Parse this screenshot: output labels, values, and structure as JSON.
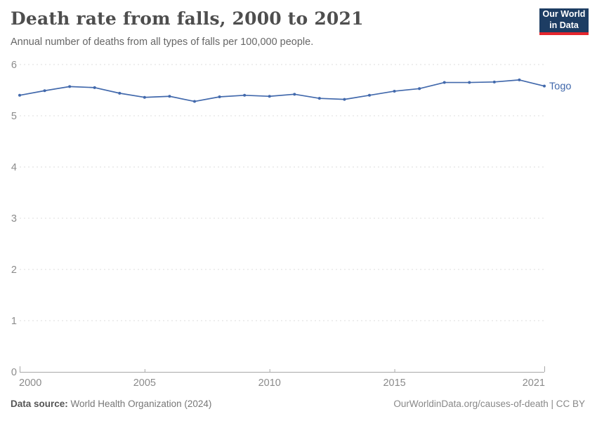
{
  "header": {
    "title": "Death rate from falls, 2000 to 2021",
    "subtitle": "Annual number of deaths from all types of falls per 100,000 people.",
    "logo": {
      "line1": "Our World",
      "line2": "in Data"
    }
  },
  "chart_data": {
    "type": "line",
    "title": "Death rate from falls, 2000 to 2021",
    "subtitle": "Annual number of deaths from all types of falls per 100,000 people.",
    "xlabel": "",
    "ylabel": "",
    "x": [
      2000,
      2001,
      2002,
      2003,
      2004,
      2005,
      2006,
      2007,
      2008,
      2009,
      2010,
      2011,
      2012,
      2013,
      2014,
      2015,
      2016,
      2017,
      2018,
      2019,
      2020,
      2021
    ],
    "series": [
      {
        "name": "Togo",
        "color": "#4269AC",
        "values": [
          5.4,
          5.49,
          5.57,
          5.55,
          5.44,
          5.36,
          5.38,
          5.28,
          5.37,
          5.4,
          5.38,
          5.42,
          5.34,
          5.32,
          5.4,
          5.48,
          5.53,
          5.65,
          5.65,
          5.66,
          5.7,
          5.58
        ]
      }
    ],
    "ylim": [
      0,
      6
    ],
    "yticks": [
      0,
      1,
      2,
      3,
      4,
      5,
      6
    ],
    "xticks": [
      2000,
      2005,
      2010,
      2015,
      2021
    ],
    "grid": "horizontal-dashed",
    "legend": "series-end-label"
  },
  "footer": {
    "source_label": "Data source:",
    "source_text": " World Health Organization (2024)",
    "link_text": "OurWorldinData.org/causes-of-death | CC BY"
  },
  "colors": {
    "accent_line": "#4269AC",
    "logo_bg": "#1D3D63",
    "logo_accent": "#E5262D",
    "gridline": "#dedede",
    "axis": "#a8a8a8",
    "tick_label": "#8b8b8b"
  }
}
